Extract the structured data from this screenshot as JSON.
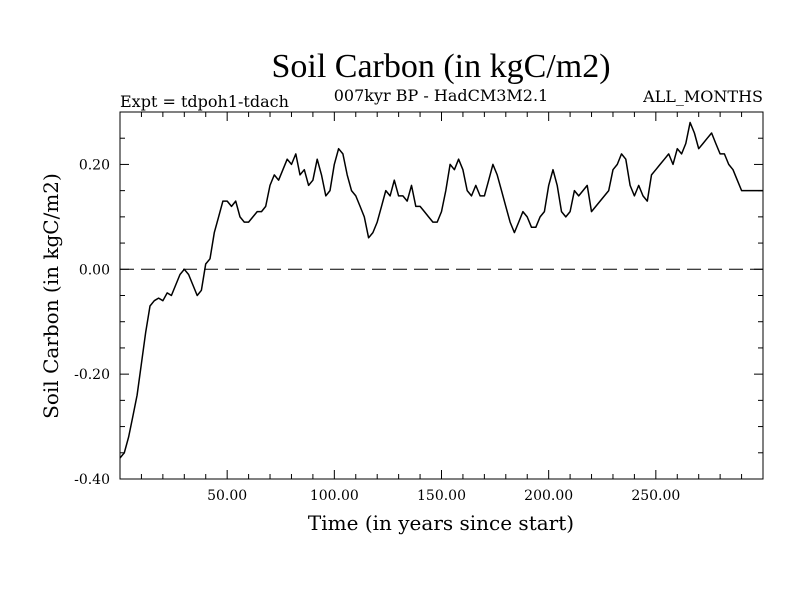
{
  "chart_data": {
    "type": "line",
    "title": "Soil Carbon (in kgC/m2)",
    "subtitle_left": "Expt = tdpoh1-tdach",
    "subtitle_center": "007kyr BP - HadCM3M2.1",
    "subtitle_right": "ALL_MONTHS",
    "xlabel": "Time (in years since start)",
    "ylabel": "Soil Carbon (in kgC/m2)",
    "xlim": [
      0,
      300
    ],
    "ylim": [
      -0.4,
      0.3
    ],
    "x_ticks": [
      50,
      100,
      150,
      200,
      250
    ],
    "x_tick_labels": [
      "50.00",
      "100.00",
      "150.00",
      "200.00",
      "250.00"
    ],
    "y_ticks": [
      -0.4,
      -0.2,
      0.0,
      0.2
    ],
    "y_tick_labels": [
      "-0.40",
      "-0.20",
      "0.00",
      "0.20"
    ],
    "reference_line": {
      "y": 0.0,
      "style": "dashed"
    },
    "series": [
      {
        "name": "Soil Carbon",
        "color": "#000000",
        "x": [
          0,
          2,
          4,
          6,
          8,
          10,
          12,
          14,
          16,
          18,
          20,
          22,
          24,
          26,
          28,
          30,
          32,
          34,
          36,
          38,
          40,
          42,
          44,
          46,
          48,
          50,
          52,
          54,
          56,
          58,
          60,
          62,
          64,
          66,
          68,
          70,
          72,
          74,
          76,
          78,
          80,
          82,
          84,
          86,
          88,
          90,
          92,
          94,
          96,
          98,
          100,
          102,
          104,
          106,
          108,
          110,
          112,
          114,
          116,
          118,
          120,
          122,
          124,
          126,
          128,
          130,
          132,
          134,
          136,
          138,
          140,
          142,
          144,
          146,
          148,
          150,
          152,
          154,
          156,
          158,
          160,
          162,
          164,
          166,
          168,
          170,
          172,
          174,
          176,
          178,
          180,
          182,
          184,
          186,
          188,
          190,
          192,
          194,
          196,
          198,
          200,
          202,
          204,
          206,
          208,
          210,
          212,
          214,
          216,
          218,
          220,
          222,
          224,
          226,
          228,
          230,
          232,
          234,
          236,
          238,
          240,
          242,
          244,
          246,
          248,
          250,
          252,
          254,
          256,
          258,
          260,
          262,
          264,
          266,
          268,
          270,
          272,
          274,
          276,
          278,
          280,
          282,
          284,
          286,
          288,
          290,
          292,
          294,
          296,
          298,
          300
        ],
        "y": [
          -0.36,
          -0.35,
          -0.32,
          -0.28,
          -0.24,
          -0.18,
          -0.12,
          -0.07,
          -0.06,
          -0.055,
          -0.06,
          -0.045,
          -0.05,
          -0.03,
          -0.01,
          0.0,
          -0.01,
          -0.03,
          -0.05,
          -0.04,
          0.01,
          0.02,
          0.07,
          0.1,
          0.13,
          0.13,
          0.12,
          0.13,
          0.1,
          0.09,
          0.09,
          0.1,
          0.11,
          0.11,
          0.12,
          0.16,
          0.18,
          0.17,
          0.19,
          0.21,
          0.2,
          0.22,
          0.18,
          0.19,
          0.16,
          0.17,
          0.21,
          0.18,
          0.14,
          0.15,
          0.2,
          0.23,
          0.22,
          0.18,
          0.15,
          0.14,
          0.12,
          0.1,
          0.06,
          0.07,
          0.09,
          0.12,
          0.15,
          0.14,
          0.17,
          0.14,
          0.14,
          0.13,
          0.16,
          0.12,
          0.12,
          0.11,
          0.1,
          0.09,
          0.09,
          0.11,
          0.15,
          0.2,
          0.19,
          0.21,
          0.19,
          0.15,
          0.14,
          0.16,
          0.14,
          0.14,
          0.17,
          0.2,
          0.18,
          0.15,
          0.12,
          0.09,
          0.07,
          0.09,
          0.11,
          0.1,
          0.08,
          0.08,
          0.1,
          0.11,
          0.16,
          0.19,
          0.16,
          0.11,
          0.1,
          0.11,
          0.15,
          0.14,
          0.15,
          0.16,
          0.11,
          0.12,
          0.13,
          0.14,
          0.15,
          0.19,
          0.2,
          0.22,
          0.21,
          0.16,
          0.14,
          0.16,
          0.14,
          0.13,
          0.18,
          0.19,
          0.2,
          0.21,
          0.22,
          0.2,
          0.23,
          0.22,
          0.24,
          0.28,
          0.26,
          0.23,
          0.24,
          0.25,
          0.26,
          0.24,
          0.22,
          0.22,
          0.2,
          0.19,
          0.17,
          0.15,
          0.15,
          0.15,
          0.15,
          0.15,
          0.15
        ]
      }
    ]
  }
}
